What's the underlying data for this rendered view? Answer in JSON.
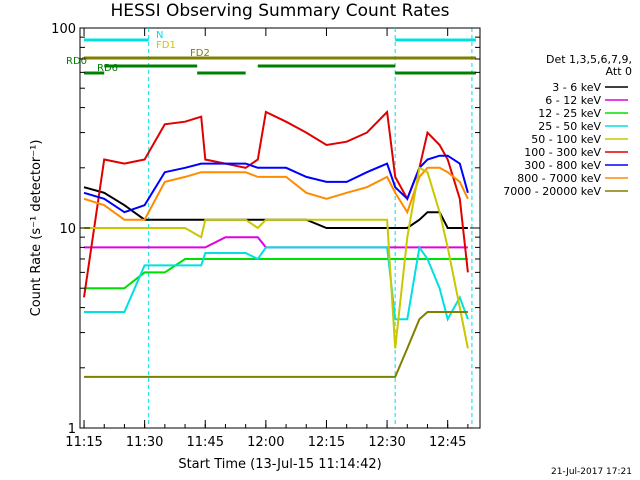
{
  "chart_data": {
    "type": "line",
    "title": "HESSI Observing Summary Count Rates",
    "xlabel": "Start Time (13-Jul-15 11:14:42)",
    "ylabel": "Count Rate (s⁻¹ detector⁻¹)",
    "yscale": "log",
    "ylim": [
      1,
      100
    ],
    "xlim": [
      "11:14",
      "12:53"
    ],
    "x_ticks": [
      "11:15",
      "11:30",
      "11:45",
      "12:00",
      "12:15",
      "12:30",
      "12:45"
    ],
    "y_ticks": [
      "1",
      "10",
      "100"
    ],
    "footer_date": "21-Jul-2017 17:21",
    "legend": {
      "header": [
        "Det 1,3,5,6,7,9,",
        "Att 0"
      ],
      "placement": "right"
    },
    "x": [
      "11:15",
      "11:20",
      "11:25",
      "11:30",
      "11:35",
      "11:40",
      "11:44",
      "11:45",
      "11:50",
      "11:55",
      "11:58",
      "12:00",
      "12:05",
      "12:10",
      "12:15",
      "12:20",
      "12:25",
      "12:30",
      "12:32",
      "12:35",
      "12:38",
      "12:40",
      "12:43",
      "12:45",
      "12:48",
      "12:50"
    ],
    "series": [
      {
        "name": "3 - 6 keV",
        "color": "#000000",
        "values": [
          null,
          null,
          null,
          null,
          null,
          null,
          null,
          null,
          null,
          null,
          null,
          null,
          null,
          null,
          null,
          null,
          null,
          null,
          null,
          null,
          null,
          null,
          null,
          null,
          null,
          null
        ]
      },
      {
        "name": "6 - 12 keV",
        "color": "#e000e0",
        "values": [
          null,
          null,
          null,
          null,
          null,
          null,
          null,
          null,
          null,
          null,
          null,
          null,
          null,
          null,
          null,
          null,
          null,
          null,
          null,
          null,
          null,
          null,
          null,
          null,
          null,
          null
        ]
      },
      {
        "name": "12 - 25 keV",
        "color": "#00e000",
        "values": [
          null,
          null,
          null,
          null,
          null,
          null,
          null,
          null,
          null,
          null,
          null,
          null,
          null,
          null,
          null,
          null,
          null,
          null,
          null,
          null,
          null,
          null,
          null,
          null,
          null,
          null
        ]
      },
      {
        "name": "25 - 50 keV",
        "color": "#00e0e0",
        "values": [
          3.8,
          3.8,
          3.8,
          6.5,
          6.5,
          6.5,
          6.5,
          7.5,
          7.5,
          7.5,
          7.0,
          8.0,
          8.0,
          8.0,
          8.0,
          8.0,
          8.0,
          8.0,
          3.5,
          3.5,
          8.0,
          7.0,
          5.0,
          3.5,
          4.5,
          3.5
        ]
      },
      {
        "name": "50 - 100 keV",
        "color": "#c8c800",
        "values": [
          10,
          10,
          10,
          10,
          10,
          10,
          9,
          11,
          11,
          11,
          10,
          11,
          11,
          11,
          11,
          11,
          11,
          11,
          2.5,
          9,
          20,
          19,
          12,
          8,
          4,
          2.5
        ]
      },
      {
        "name": "100 - 300 keV",
        "color": "#e00000",
        "values": [
          null,
          null,
          null,
          null,
          null,
          null,
          null,
          null,
          null,
          null,
          null,
          null,
          null,
          null,
          null,
          null,
          null,
          null,
          null,
          null,
          null,
          null,
          null,
          null,
          null,
          null
        ]
      },
      {
        "name": "300 - 800 keV",
        "color": "#0000ff",
        "values": [
          null,
          null,
          null,
          null,
          null,
          null,
          null,
          null,
          null,
          null,
          null,
          null,
          null,
          null,
          null,
          null,
          null,
          null,
          null,
          null,
          null,
          null,
          null,
          null,
          null,
          null
        ]
      },
      {
        "name": "800 - 7000 keV",
        "color": "#ff8c00",
        "values": [
          null,
          null,
          null,
          null,
          null,
          null,
          null,
          null,
          null,
          null,
          null,
          null,
          null,
          null,
          null,
          null,
          null,
          null,
          null,
          null,
          null,
          null,
          null,
          null,
          null,
          null
        ]
      },
      {
        "name": "7000 - 20000 keV",
        "color": "#808000",
        "values": [
          1.8,
          1.8,
          1.8,
          1.8,
          1.8,
          1.8,
          1.8,
          1.8,
          1.8,
          1.8,
          1.8,
          1.8,
          1.8,
          1.8,
          1.8,
          1.8,
          1.8,
          1.8,
          1.8,
          2.5,
          3.5,
          3.8,
          3.8,
          3.8,
          3.8,
          3.8
        ]
      }
    ],
    "spectra": [
      {
        "name": "3 - 6 keV",
        "x": [
          "11:15",
          "11:20",
          "11:25",
          "11:30",
          "11:35",
          "11:40",
          "11:44",
          "11:45",
          "11:50",
          "11:55",
          "11:58",
          "12:00",
          "12:05",
          "12:10",
          "12:15",
          "12:20",
          "12:25",
          "12:30",
          "12:32",
          "12:35",
          "12:38",
          "12:40",
          "12:43",
          "12:45",
          "12:48",
          "12:50"
        ],
        "values": [
          16,
          15,
          13,
          11,
          11,
          11,
          11,
          11,
          11,
          11,
          11,
          11,
          11,
          11,
          10,
          10,
          10,
          10,
          10,
          10,
          11,
          12,
          12,
          10,
          10,
          10
        ]
      },
      {
        "name": "6 - 12 keV",
        "x": [
          "11:15",
          "11:20",
          "11:25",
          "11:30",
          "11:35",
          "11:40",
          "11:44",
          "11:45",
          "11:50",
          "11:55",
          "11:58",
          "12:00",
          "12:05",
          "12:10",
          "12:15",
          "12:20",
          "12:25",
          "12:30",
          "12:32",
          "12:35",
          "12:38",
          "12:40",
          "12:43",
          "12:45",
          "12:48",
          "12:50"
        ],
        "values": [
          8,
          8,
          8,
          8,
          8,
          8,
          8,
          8,
          9,
          9,
          9,
          8,
          8,
          8,
          8,
          8,
          8,
          8,
          8,
          8,
          8,
          8,
          8,
          8,
          8,
          8
        ]
      },
      {
        "name": "12 - 25 keV",
        "x": [
          "11:15",
          "11:20",
          "11:25",
          "11:30",
          "11:35",
          "11:40",
          "11:44",
          "11:45",
          "11:50",
          "11:55",
          "11:58",
          "12:00",
          "12:05",
          "12:10",
          "12:15",
          "12:20",
          "12:25",
          "12:30",
          "12:32",
          "12:35",
          "12:38",
          "12:40",
          "12:43",
          "12:45",
          "12:48",
          "12:50"
        ],
        "values": [
          5,
          5,
          5,
          6,
          6,
          7,
          7,
          7,
          7,
          7,
          7,
          7,
          7,
          7,
          7,
          7,
          7,
          7,
          7,
          7,
          7,
          7,
          7,
          7,
          7,
          7
        ]
      },
      {
        "name": "100 - 300 keV",
        "x": [
          "11:15",
          "11:20",
          "11:25",
          "11:30",
          "11:35",
          "11:40",
          "11:44",
          "11:45",
          "11:50",
          "11:55",
          "11:58",
          "12:00",
          "12:05",
          "12:10",
          "12:15",
          "12:20",
          "12:25",
          "12:30",
          "12:32",
          "12:35",
          "12:38",
          "12:40",
          "12:43",
          "12:45",
          "12:48",
          "12:50"
        ],
        "values": [
          4.5,
          22,
          21,
          22,
          33,
          34,
          36,
          22,
          21,
          20,
          22,
          38,
          34,
          30,
          26,
          27,
          30,
          38,
          18,
          14,
          20,
          30,
          26,
          22,
          14,
          6
        ]
      },
      {
        "name": "300 - 800 keV",
        "x": [
          "11:15",
          "11:20",
          "11:25",
          "11:30",
          "11:35",
          "11:40",
          "11:44",
          "11:45",
          "11:50",
          "11:55",
          "11:58",
          "12:00",
          "12:05",
          "12:10",
          "12:15",
          "12:20",
          "12:25",
          "12:30",
          "12:32",
          "12:35",
          "12:38",
          "12:40",
          "12:43",
          "12:45",
          "12:48",
          "12:50"
        ],
        "values": [
          15,
          14,
          12,
          13,
          19,
          20,
          21,
          21,
          21,
          21,
          20,
          20,
          20,
          18,
          17,
          17,
          19,
          21,
          16,
          14,
          20,
          22,
          23,
          23,
          21,
          15
        ]
      },
      {
        "name": "800 - 7000 keV",
        "x": [
          "11:15",
          "11:20",
          "11:25",
          "11:30",
          "11:35",
          "11:40",
          "11:44",
          "11:45",
          "11:50",
          "11:55",
          "11:58",
          "12:00",
          "12:05",
          "12:10",
          "12:15",
          "12:20",
          "12:25",
          "12:30",
          "12:32",
          "12:35",
          "12:38",
          "12:40",
          "12:43",
          "12:45",
          "12:48",
          "12:50"
        ],
        "values": [
          14,
          13,
          11,
          11,
          17,
          18,
          19,
          19,
          19,
          19,
          18,
          18,
          18,
          15,
          14,
          15,
          16,
          18,
          15,
          12,
          18,
          20,
          20,
          19,
          17,
          14
        ]
      }
    ],
    "attenuator_lines": [
      {
        "label": "N",
        "color": "#00e0e0",
        "segments": [
          [
            "11:15",
            "11:31"
          ],
          [
            "12:32",
            "12:52"
          ]
        ]
      },
      {
        "label": "FD1",
        "color": "#c8c800",
        "segments": [
          [
            "11:31",
            "11:31"
          ]
        ]
      },
      {
        "label": "FD2",
        "color": "#808000",
        "segments": [
          [
            "11:15",
            "12:52"
          ]
        ]
      },
      {
        "label": "RD0",
        "color": "#008000",
        "segments": [
          [
            "11:20",
            "11:43"
          ],
          [
            "11:58",
            "12:32"
          ]
        ]
      },
      {
        "label": "RD6",
        "color": "#008000",
        "segments": [
          [
            "11:15",
            "11:20"
          ],
          [
            "11:43",
            "11:55"
          ],
          [
            "12:32",
            "12:52"
          ]
        ]
      }
    ],
    "vertical_markers": [
      "11:31",
      "12:32",
      "12:51"
    ]
  }
}
